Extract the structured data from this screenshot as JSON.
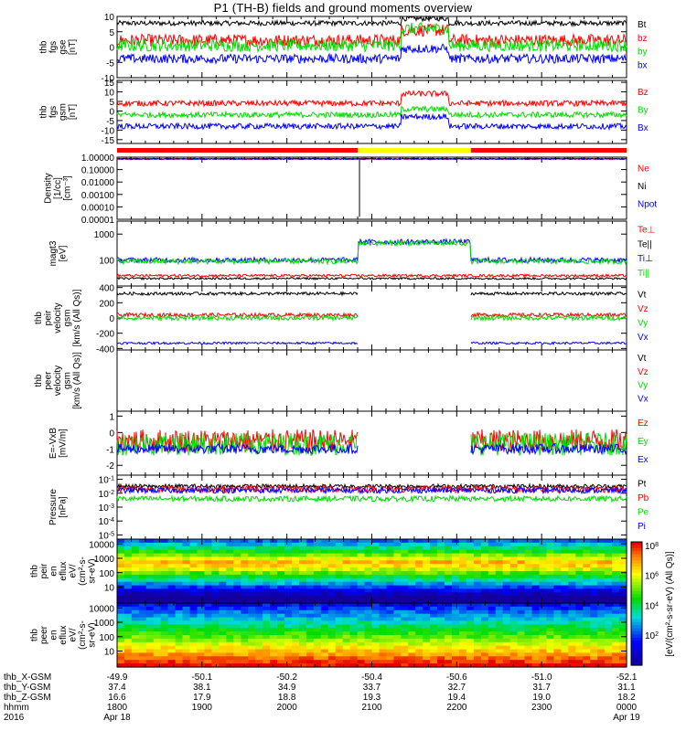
{
  "title": "P1 (TH-B) fields and ground moments overview",
  "colors": {
    "black": "#000000",
    "red": "#ff0000",
    "green": "#00dd00",
    "blue": "#0000ff",
    "yellow": "#ffff00"
  },
  "chart_data": [
    {
      "type": "line",
      "id": "fgs_gse",
      "ylabel": [
        "thb",
        "fgs",
        "gse",
        "[nT]"
      ],
      "ylim": [
        -10,
        10
      ],
      "ticks": [
        10,
        5,
        0,
        -5,
        -10
      ],
      "legend": [
        "Bt",
        "bz",
        "by",
        "bx"
      ]
    },
    {
      "type": "line",
      "id": "fgs_gsm",
      "ylabel": [
        "thb",
        "fgs",
        "gsm",
        "[nT]"
      ],
      "ylim": [
        -17,
        16
      ],
      "ticks": [
        15,
        10,
        5,
        0,
        -5,
        -10,
        -15
      ],
      "legend": [
        "Bz",
        "By",
        "Bx"
      ]
    },
    {
      "type": "line",
      "id": "density",
      "ylabel": [
        "Density",
        "[1/cc]",
        "[cm^-3]"
      ],
      "scale": "log",
      "ylim": [
        1e-05,
        1
      ],
      "ticks": [
        "1.00000",
        "0.10000",
        "0.01000",
        "0.00100",
        "0.00010",
        "0.00001"
      ],
      "legend": [
        "Ne",
        "Ni",
        "Npot"
      ]
    },
    {
      "type": "line",
      "id": "temperature",
      "ylabel": [
        "magt3",
        "[eV]"
      ],
      "scale": "log",
      "ticks": [
        "1000",
        "100"
      ],
      "legend": [
        "Te⊥",
        "Te||",
        "Ti⊥",
        "Ti||"
      ]
    },
    {
      "type": "line",
      "id": "peir_velocity",
      "ylabel": [
        "thb",
        "peir",
        "velocity",
        "gsm",
        "[km/s (All Qs)]"
      ],
      "ylim": [
        -420,
        420
      ],
      "ticks": [
        400,
        200,
        0,
        -200,
        -400
      ],
      "legend": [
        "Vt",
        "Vz",
        "Vy",
        "Vx"
      ]
    },
    {
      "type": "line",
      "id": "peer_velocity",
      "ylabel": [
        "thb",
        "peer",
        "velocity",
        "gsm",
        "[km/s (All Qs)]"
      ],
      "ticks": [],
      "legend": [
        "Vt",
        "Vz",
        "Vy",
        "Vx"
      ]
    },
    {
      "type": "line",
      "id": "e_field",
      "ylabel": [
        "E=-VxB",
        "[mV/m]"
      ],
      "ylim": [
        -2.6,
        1.3
      ],
      "ticks": [
        1,
        0,
        -1,
        -2
      ],
      "legend": [
        "Ez",
        "Ey",
        "Ex"
      ]
    },
    {
      "type": "line",
      "id": "pressure",
      "ylabel": [
        "Pressure",
        "[nPa]"
      ],
      "scale": "log",
      "ticks": [
        "10^-1",
        "10^-2",
        "10^-3",
        "10^-4",
        "10^-5"
      ],
      "legend": [
        "Pt",
        "Pb",
        "Pe",
        "Pi"
      ]
    },
    {
      "type": "heatmap",
      "id": "peir_eflux",
      "ylabel": [
        "thb",
        "peir",
        "en",
        "eflux",
        "eV/",
        "(cm^2-s-",
        "sr-eV)"
      ],
      "scale": "log",
      "ticks": [
        "10000",
        "1000",
        "100",
        "10"
      ]
    },
    {
      "type": "heatmap",
      "id": "peer_eflux",
      "ylabel": [
        "thb",
        "peer",
        "en",
        "eflux",
        "eV/",
        "(cm^2-s-",
        "sr-eV)"
      ],
      "scale": "log",
      "ticks": [
        "10000",
        "1000",
        "100",
        "10"
      ]
    }
  ],
  "colorbar": {
    "ticks": [
      "10^8",
      "10^6",
      "10^4",
      "10^2"
    ],
    "label": "[eV/(cm^2-s-sr-eV) (All Qs)]"
  },
  "x_axis": {
    "rows": [
      {
        "label": "thb_X-GSM",
        "values": [
          "-49.9",
          "-50.1",
          "-50.2",
          "-50.4",
          "-50.6",
          "-51.0",
          "-52.1"
        ]
      },
      {
        "label": "thb_Y-GSM",
        "values": [
          "37.4",
          "38.1",
          "34.9",
          "33.7",
          "32.7",
          "31.7",
          "31.1"
        ]
      },
      {
        "label": "thb_Z-GSM",
        "values": [
          "16.6",
          "17.9",
          "18.8",
          "19.3",
          "19.4",
          "19.0",
          "18.2"
        ]
      },
      {
        "label": "hhmm",
        "values": [
          "1800",
          "1900",
          "2000",
          "2100",
          "2200",
          "2300",
          "0000"
        ]
      },
      {
        "label": "2016",
        "values": [
          "Apr 18",
          "",
          "",
          "",
          "",
          "",
          "Apr 19"
        ]
      }
    ],
    "times": [
      "1800",
      "1900",
      "2000",
      "2100",
      "2200",
      "2300",
      "0000"
    ],
    "shaded_interval_hhmm": [
      "2050",
      "2210"
    ]
  }
}
